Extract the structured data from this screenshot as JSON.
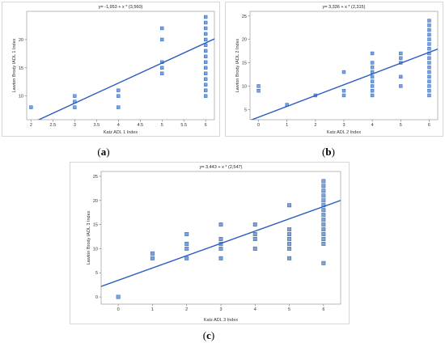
{
  "chart_data": [
    {
      "id": "a",
      "type": "scatter",
      "panel_label": "a",
      "title": "y= -1,953 + x * (3,560)",
      "xlabel": "Katz ADL 1 Index",
      "ylabel": "Lawton Brody IADL 1 Index",
      "xlim": [
        1.9,
        6.2
      ],
      "ylim": [
        5.8,
        25
      ],
      "xticks": [
        "2",
        "2.5",
        "3",
        "3.5",
        "4",
        "4.5",
        "5",
        "5.5",
        "6"
      ],
      "xtick_values": [
        2,
        2.5,
        3,
        3.5,
        4,
        4.5,
        5,
        5.5,
        6
      ],
      "yticks": [
        "10",
        "15",
        "20"
      ],
      "ytick_values": [
        10,
        15,
        20
      ],
      "regression": {
        "intercept": -1.953,
        "slope": 3.56
      },
      "marker_color": "#7ba4dd",
      "marker_edge": "#3a6fc2",
      "line_color": "#2b5cc4",
      "points": [
        {
          "x": 2,
          "y": 8
        },
        {
          "x": 3,
          "y": 8
        },
        {
          "x": 3,
          "y": 9
        },
        {
          "x": 3,
          "y": 10
        },
        {
          "x": 4,
          "y": 8
        },
        {
          "x": 4,
          "y": 10
        },
        {
          "x": 4,
          "y": 11
        },
        {
          "x": 5,
          "y": 14
        },
        {
          "x": 5,
          "y": 15
        },
        {
          "x": 5,
          "y": 16
        },
        {
          "x": 5,
          "y": 20
        },
        {
          "x": 5,
          "y": 22
        },
        {
          "x": 6,
          "y": 10
        },
        {
          "x": 6,
          "y": 11
        },
        {
          "x": 6,
          "y": 12
        },
        {
          "x": 6,
          "y": 13
        },
        {
          "x": 6,
          "y": 14
        },
        {
          "x": 6,
          "y": 15
        },
        {
          "x": 6,
          "y": 16
        },
        {
          "x": 6,
          "y": 17
        },
        {
          "x": 6,
          "y": 18
        },
        {
          "x": 6,
          "y": 19
        },
        {
          "x": 6,
          "y": 20
        },
        {
          "x": 6,
          "y": 21
        },
        {
          "x": 6,
          "y": 22
        },
        {
          "x": 6,
          "y": 23
        },
        {
          "x": 6,
          "y": 24
        }
      ]
    },
    {
      "id": "b",
      "type": "scatter",
      "panel_label": "b",
      "title": "y= 3,336 + x * (2,315)",
      "xlabel": "Katz ADL 2 Index",
      "ylabel": "Lawton Brody IADL 2 Index",
      "xlim": [
        -0.3,
        6.3
      ],
      "ylim": [
        2.8,
        26
      ],
      "xticks": [
        "0",
        "1",
        "2",
        "3",
        "4",
        "5",
        "6"
      ],
      "xtick_values": [
        0,
        1,
        2,
        3,
        4,
        5,
        6
      ],
      "yticks": [
        "5",
        "10",
        "15",
        "20",
        "25"
      ],
      "ytick_values": [
        5,
        10,
        15,
        20,
        25
      ],
      "regression": {
        "intercept": 3.336,
        "slope": 2.315
      },
      "marker_color": "#7ba4dd",
      "marker_edge": "#3a6fc2",
      "line_color": "#2b5cc4",
      "points": [
        {
          "x": 0,
          "y": 9
        },
        {
          "x": 0,
          "y": 10
        },
        {
          "x": 1,
          "y": 6
        },
        {
          "x": 2,
          "y": 8
        },
        {
          "x": 3,
          "y": 8
        },
        {
          "x": 3,
          "y": 9
        },
        {
          "x": 3,
          "y": 13
        },
        {
          "x": 4,
          "y": 8
        },
        {
          "x": 4,
          "y": 9
        },
        {
          "x": 4,
          "y": 10
        },
        {
          "x": 4,
          "y": 11
        },
        {
          "x": 4,
          "y": 12
        },
        {
          "x": 4,
          "y": 13
        },
        {
          "x": 4,
          "y": 14
        },
        {
          "x": 4,
          "y": 15
        },
        {
          "x": 4,
          "y": 17
        },
        {
          "x": 5,
          "y": 10
        },
        {
          "x": 5,
          "y": 12
        },
        {
          "x": 5,
          "y": 15
        },
        {
          "x": 5,
          "y": 16
        },
        {
          "x": 5,
          "y": 17
        },
        {
          "x": 6,
          "y": 8
        },
        {
          "x": 6,
          "y": 9
        },
        {
          "x": 6,
          "y": 10
        },
        {
          "x": 6,
          "y": 11
        },
        {
          "x": 6,
          "y": 12
        },
        {
          "x": 6,
          "y": 13
        },
        {
          "x": 6,
          "y": 14
        },
        {
          "x": 6,
          "y": 15
        },
        {
          "x": 6,
          "y": 16
        },
        {
          "x": 6,
          "y": 17
        },
        {
          "x": 6,
          "y": 18
        },
        {
          "x": 6,
          "y": 19
        },
        {
          "x": 6,
          "y": 20
        },
        {
          "x": 6,
          "y": 21
        },
        {
          "x": 6,
          "y": 22
        },
        {
          "x": 6,
          "y": 23
        },
        {
          "x": 6,
          "y": 24
        }
      ]
    },
    {
      "id": "c",
      "type": "scatter",
      "panel_label": "c",
      "title": "y= 3,443 + x * (2,547)",
      "xlabel": "Katz ADL 3 Index",
      "ylabel": "Lawton Brody IADL 3 Index",
      "xlim": [
        -0.5,
        6.5
      ],
      "ylim": [
        -1.5,
        26
      ],
      "xticks": [
        "0",
        "1",
        "2",
        "3",
        "4",
        "5",
        "6"
      ],
      "xtick_values": [
        0,
        1,
        2,
        3,
        4,
        5,
        6
      ],
      "yticks": [
        "0",
        "5",
        "10",
        "15",
        "20",
        "25"
      ],
      "ytick_values": [
        0,
        5,
        10,
        15,
        20,
        25
      ],
      "regression": {
        "intercept": 3.443,
        "slope": 2.547
      },
      "marker_color": "#7ba4dd",
      "marker_edge": "#3a6fc2",
      "line_color": "#2b5cc4",
      "points": [
        {
          "x": 0,
          "y": 0
        },
        {
          "x": 1,
          "y": 8
        },
        {
          "x": 1,
          "y": 9
        },
        {
          "x": 2,
          "y": 8
        },
        {
          "x": 2,
          "y": 10
        },
        {
          "x": 2,
          "y": 11
        },
        {
          "x": 2,
          "y": 13
        },
        {
          "x": 3,
          "y": 8
        },
        {
          "x": 3,
          "y": 10
        },
        {
          "x": 3,
          "y": 11
        },
        {
          "x": 3,
          "y": 12
        },
        {
          "x": 3,
          "y": 15
        },
        {
          "x": 4,
          "y": 10
        },
        {
          "x": 4,
          "y": 12
        },
        {
          "x": 4,
          "y": 13
        },
        {
          "x": 4,
          "y": 15
        },
        {
          "x": 5,
          "y": 8
        },
        {
          "x": 5,
          "y": 10
        },
        {
          "x": 5,
          "y": 11
        },
        {
          "x": 5,
          "y": 12
        },
        {
          "x": 5,
          "y": 13
        },
        {
          "x": 5,
          "y": 14
        },
        {
          "x": 5,
          "y": 19
        },
        {
          "x": 6,
          "y": 7
        },
        {
          "x": 6,
          "y": 11
        },
        {
          "x": 6,
          "y": 12
        },
        {
          "x": 6,
          "y": 13
        },
        {
          "x": 6,
          "y": 14
        },
        {
          "x": 6,
          "y": 15
        },
        {
          "x": 6,
          "y": 16
        },
        {
          "x": 6,
          "y": 17
        },
        {
          "x": 6,
          "y": 18
        },
        {
          "x": 6,
          "y": 19
        },
        {
          "x": 6,
          "y": 20
        },
        {
          "x": 6,
          "y": 21
        },
        {
          "x": 6,
          "y": 22
        },
        {
          "x": 6,
          "y": 23
        },
        {
          "x": 6,
          "y": 24
        }
      ]
    }
  ]
}
